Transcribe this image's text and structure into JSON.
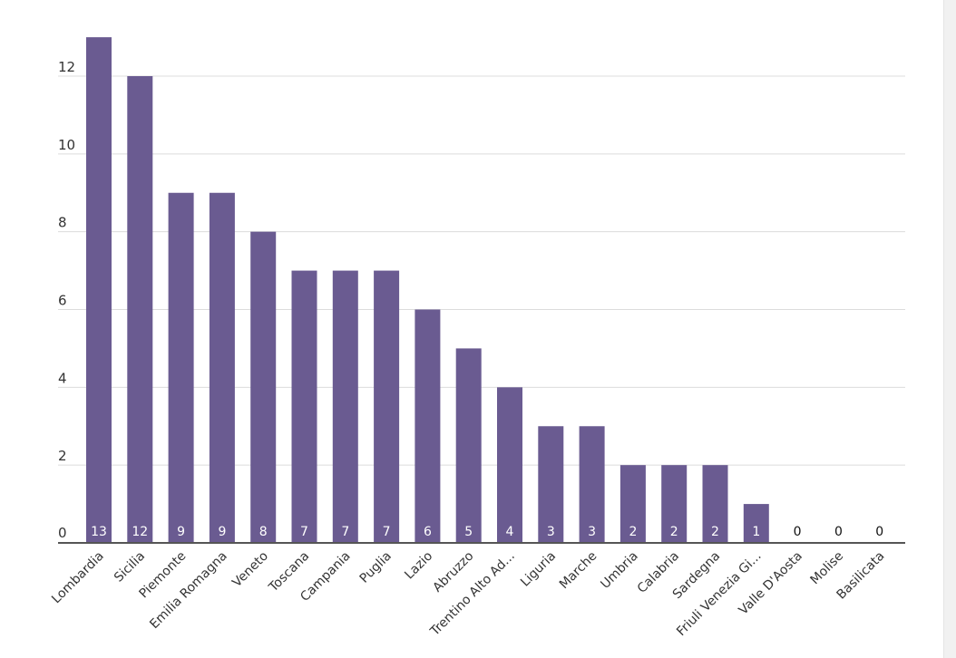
{
  "chart_data": {
    "type": "bar",
    "title": "",
    "xlabel": "",
    "ylabel": "",
    "ylim": [
      0,
      13
    ],
    "yticks": [
      0,
      2,
      4,
      6,
      8,
      10,
      12
    ],
    "grid": true,
    "bar_color": "#6a5b91",
    "categories": [
      "Lombardia",
      "Sicilia",
      "Piemonte",
      "Emilia Romagna",
      "Veneto",
      "Toscana",
      "Campania",
      "Puglia",
      "Lazio",
      "Abruzzo",
      "Trentino Alto Ad...",
      "Liguria",
      "Marche",
      "Umbria",
      "Calabria",
      "Sardegna",
      "Friuli Venezia Gi...",
      "Valle D'Aosta",
      "Molise",
      "Basilicata"
    ],
    "values": [
      13,
      12,
      9,
      9,
      8,
      7,
      7,
      7,
      6,
      5,
      4,
      3,
      3,
      2,
      2,
      2,
      1,
      0,
      0,
      0
    ],
    "data_labels": [
      "13",
      "12",
      "9",
      "9",
      "8",
      "7",
      "7",
      "7",
      "6",
      "5",
      "4",
      "3",
      "3",
      "2",
      "2",
      "2",
      "1",
      "0",
      "0",
      "0"
    ]
  }
}
